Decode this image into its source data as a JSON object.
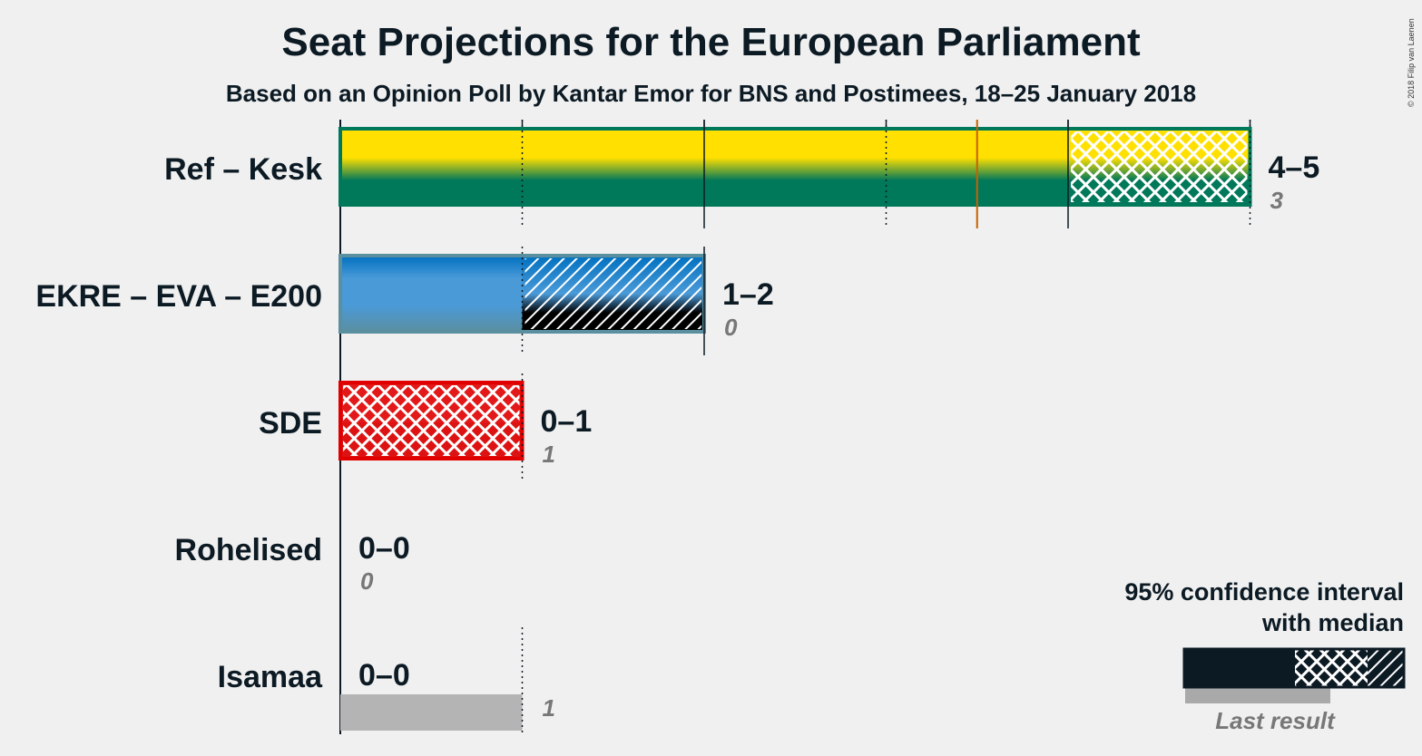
{
  "title": "Seat Projections for the European Parliament",
  "subtitle": "Based on an Opinion Poll by Kantar Emor for BNS and Postimees, 18–25 January 2018",
  "copyright": "© 2018 Filip van Laenen",
  "legend": {
    "title_line1": "95% confidence interval",
    "title_line2": "with median",
    "last_result": "Last result"
  },
  "chart_data": {
    "type": "bar",
    "orientation": "horizontal",
    "title": "Seat Projections for the European Parliament",
    "xlim": [
      0,
      5
    ],
    "majority_line": 3.5,
    "categories": [
      "Ref – Kesk",
      "EKRE – EVA – E200",
      "SDE",
      "Rohelised",
      "Isamaa"
    ],
    "series": [
      {
        "name": "95% confidence interval",
        "values": [
          {
            "low": 4,
            "high": 5,
            "median": 4,
            "label": "4–5",
            "colors": [
              "#ffe000",
              "#00785a"
            ]
          },
          {
            "low": 1,
            "high": 2,
            "median": 1,
            "label": "1–2",
            "colors": [
              "#0070c0",
              "#5a8fa0"
            ]
          },
          {
            "low": 0,
            "high": 1,
            "median": 1,
            "label": "0–1",
            "colors": [
              "#e10000",
              "#e10000"
            ]
          },
          {
            "low": 0,
            "high": 0,
            "median": 0,
            "label": "0–0",
            "colors": [
              "#5aa02d",
              "#5aa02d"
            ]
          },
          {
            "low": 0,
            "high": 0,
            "median": 0,
            "label": "0–0",
            "colors": [
              "#0090d0",
              "#0090d0"
            ]
          }
        ]
      },
      {
        "name": "Last result",
        "values": [
          3,
          0,
          1,
          0,
          1
        ],
        "labels": [
          "3",
          "0",
          "1",
          "0",
          "1"
        ]
      }
    ]
  }
}
